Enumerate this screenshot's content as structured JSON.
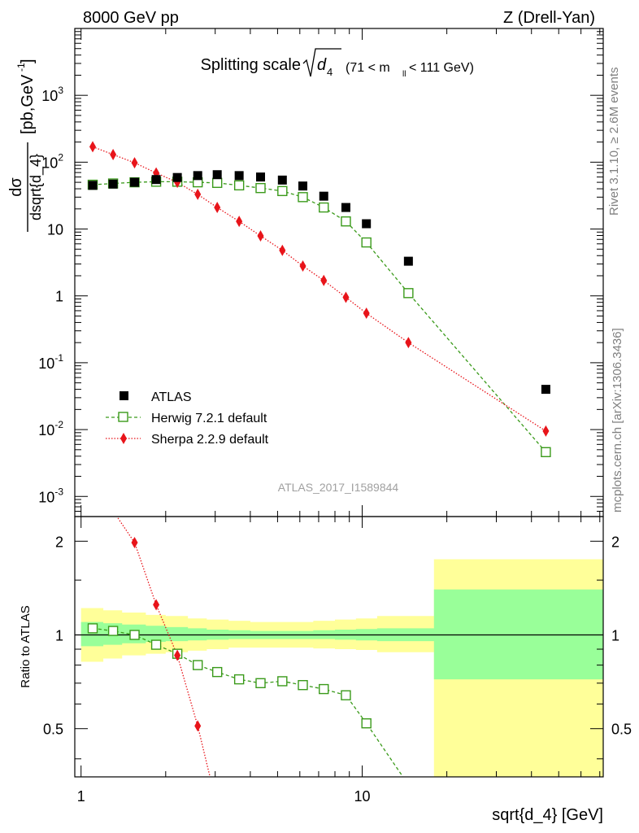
{
  "header": {
    "left": "8000 GeV pp",
    "right": "Z (Drell-Yan)"
  },
  "title": {
    "prefix": "Splitting scale",
    "sub": "4",
    "range": "(71 < m",
    "range_sub": "ll",
    "range_end": " < 111 GeV)"
  },
  "side_labels": {
    "rivet": "Rivet 3.1.10, ≥ 2.6M events",
    "mcplots": "mcplots.cern.ch [arXiv:1306.3436]"
  },
  "watermark": "ATLAS_2017_I1589844",
  "ratio_ylabel": "Ratio to ATLAS",
  "xlabel": "sqrt{d_4} [GeV]",
  "legend": {
    "atlas": "ATLAS",
    "herwig": "Herwig 7.2.1 default",
    "sherpa": "Sherpa 2.2.9 default"
  },
  "colors": {
    "atlas": "#000000",
    "herwig": "#3a9a1a",
    "sherpa": "#e8141a",
    "band_inner": "#99ff99",
    "band_outer": "#ffff99"
  },
  "chart_data": {
    "type": "scatter",
    "xscale": "log",
    "xlim": [
      0.95,
      72
    ],
    "main": {
      "yscale": "log",
      "ylim": [
        0.0005,
        10000
      ],
      "ytick_labels": [
        "10^{-3}",
        "10^{-2}",
        "10^{-1}",
        "1",
        "10",
        "10^{2}",
        "10^{3}"
      ]
    },
    "ratio": {
      "yscale": "log",
      "ylim": [
        0.35,
        2.4
      ],
      "ytick_labels": [
        "0.5",
        "1",
        "2"
      ]
    },
    "xtick_labels": [
      "1",
      "10"
    ],
    "bin_edges": [
      1.0,
      1.2,
      1.4,
      1.7,
      2.0,
      2.4,
      2.8,
      3.35,
      4.0,
      4.75,
      5.65,
      6.7,
      8.0,
      9.5,
      11.3,
      18.0,
      72.0
    ],
    "series": [
      {
        "name": "ATLAS",
        "x": [
          1.1,
          1.3,
          1.55,
          1.85,
          2.2,
          2.6,
          3.05,
          3.65,
          4.35,
          5.2,
          6.15,
          7.3,
          8.75,
          10.35,
          14.6,
          45.0
        ],
        "y": [
          45,
          47,
          50,
          55,
          59,
          63,
          65,
          63,
          60,
          54,
          44,
          31,
          21,
          12,
          3.3,
          0.04
        ]
      },
      {
        "name": "Herwig 7.2.1 default",
        "x": [
          1.1,
          1.3,
          1.55,
          1.85,
          2.2,
          2.6,
          3.05,
          3.65,
          4.35,
          5.2,
          6.15,
          7.3,
          8.75,
          10.35,
          14.6,
          45.0
        ],
        "y": [
          46,
          48,
          50,
          51,
          51,
          50,
          49,
          45,
          41,
          37,
          30,
          21,
          13,
          6.3,
          1.1,
          0.0046
        ]
      },
      {
        "name": "Sherpa 2.2.9 default",
        "x": [
          1.1,
          1.3,
          1.55,
          1.85,
          2.2,
          2.6,
          3.05,
          3.65,
          4.35,
          5.2,
          6.15,
          7.3,
          8.75,
          10.35,
          14.6,
          45.0
        ],
        "y": [
          170,
          130,
          98,
          69,
          50,
          33,
          21,
          13,
          7.9,
          4.8,
          2.8,
          1.7,
          0.95,
          0.55,
          0.2,
          0.0095
        ]
      }
    ],
    "ratio_series": [
      {
        "name": "Herwig 7.2.1 default",
        "x": [
          1.1,
          1.3,
          1.55,
          1.85,
          2.2,
          2.6,
          3.05,
          3.65,
          4.35,
          5.2,
          6.15,
          7.3,
          8.75,
          10.35,
          14.6
        ],
        "y": [
          1.05,
          1.03,
          1.0,
          0.93,
          0.87,
          0.8,
          0.76,
          0.72,
          0.7,
          0.71,
          0.69,
          0.67,
          0.64,
          0.52,
          0.33
        ]
      },
      {
        "name": "Sherpa 2.2.9 default",
        "x": [
          0.95,
          1.55,
          1.85,
          2.2,
          2.6,
          2.92
        ],
        "y": [
          3.8,
          1.98,
          1.25,
          0.86,
          0.51,
          0.33
        ]
      }
    ],
    "band_inner": {
      "lo": [
        0.92,
        0.93,
        0.94,
        0.95,
        0.955,
        0.96,
        0.965,
        0.97,
        0.97,
        0.97,
        0.97,
        0.97,
        0.965,
        0.96,
        0.955,
        0.72
      ],
      "hi": [
        1.1,
        1.09,
        1.08,
        1.07,
        1.06,
        1.05,
        1.04,
        1.035,
        1.03,
        1.03,
        1.03,
        1.035,
        1.04,
        1.045,
        1.05,
        1.4
      ]
    },
    "band_outer": {
      "lo": [
        0.82,
        0.84,
        0.86,
        0.87,
        0.88,
        0.89,
        0.9,
        0.91,
        0.91,
        0.91,
        0.91,
        0.905,
        0.9,
        0.895,
        0.88,
        0.3
      ],
      "hi": [
        1.22,
        1.2,
        1.18,
        1.16,
        1.15,
        1.13,
        1.12,
        1.11,
        1.1,
        1.1,
        1.1,
        1.11,
        1.12,
        1.13,
        1.15,
        1.75
      ]
    }
  }
}
